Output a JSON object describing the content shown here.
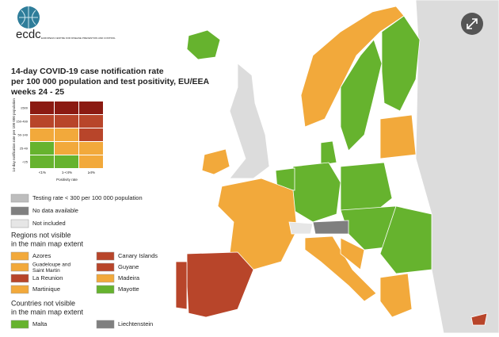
{
  "logo": {
    "name": "ecdc",
    "subtitle": "EUROPEAN CENTRE FOR DISEASE PREVENTION AND CONTROL"
  },
  "title": [
    "14-day COVID-19 case notification rate",
    "per 100 000 population and test positivity, EU/EEA",
    "weeks 24 - 25"
  ],
  "matrix": {
    "y_label": "14-day notification rate per 100 000 population",
    "x_label": "Positivity rate",
    "rows": [
      "≥500",
      "150-499",
      "50-149",
      "25-49",
      "<25"
    ],
    "columns": [
      "<1%",
      "1-<4%",
      "≥4%"
    ],
    "colors": [
      [
        "#8b1a12",
        "#8b1a12",
        "#8b1a12"
      ],
      [
        "#b8452a",
        "#b8452a",
        "#b8452a"
      ],
      [
        "#f2a93b",
        "#f2a93b",
        "#b8452a"
      ],
      [
        "#66b32e",
        "#f2a93b",
        "#f2a93b"
      ],
      [
        "#66b32e",
        "#66b32e",
        "#f2a93b"
      ]
    ]
  },
  "legend": [
    {
      "label": "Testing rate < 300 per 100 000 population",
      "color": "#bdbdbd"
    },
    {
      "label": "No data available",
      "color": "#7f7f7f"
    },
    {
      "label": "Not included",
      "color": "#e6e6e6"
    }
  ],
  "regions": {
    "heading": [
      "Regions not visible",
      "in the main map extent"
    ],
    "items": [
      {
        "label": "Azores",
        "color": "#f2a93b"
      },
      {
        "label": "Canary Islands",
        "color": "#b8452a"
      },
      {
        "label": "Guadeloupe and Saint Martin",
        "color": "#f2a93b"
      },
      {
        "label": "Guyane",
        "color": "#b8452a"
      },
      {
        "label": "La Reunion",
        "color": "#b8452a"
      },
      {
        "label": "Madeira",
        "color": "#f2a93b"
      },
      {
        "label": "Martinique",
        "color": "#f2a93b"
      },
      {
        "label": "Mayotte",
        "color": "#66b32e"
      }
    ]
  },
  "countries": {
    "heading": [
      "Countries not visible",
      "in the main map extent"
    ],
    "items": [
      {
        "label": "Malta",
        "color": "#66b32e"
      },
      {
        "label": "Liechtenstein",
        "color": "#7f7f7f"
      }
    ]
  }
}
